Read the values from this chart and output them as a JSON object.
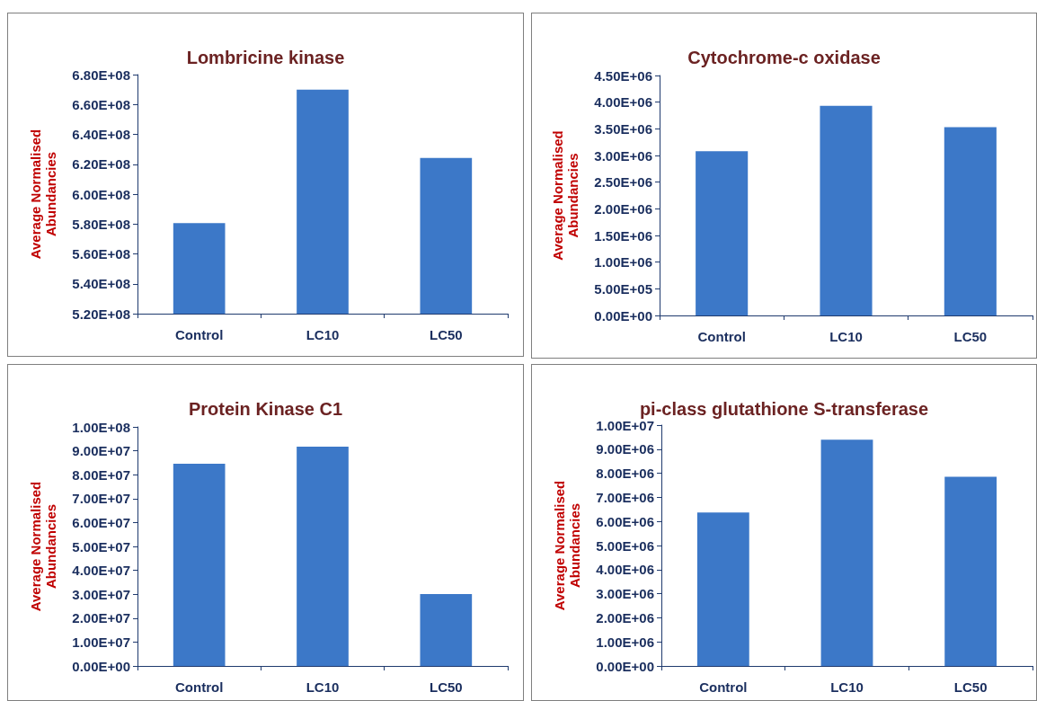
{
  "chart_data": [
    {
      "type": "bar",
      "title": "Lombricine kinase",
      "ylabel": "Average Normalised\nAbundancies",
      "categories": [
        "Control",
        "LC10",
        "LC50"
      ],
      "values": [
        580600000,
        669900000,
        624200000
      ],
      "color": "#3c78c8",
      "ylim": [
        520000000,
        680000000
      ],
      "yticks": [
        {
          "value": 520000000,
          "label": "5.20E+08"
        },
        {
          "value": 540000000,
          "label": "5.40E+08"
        },
        {
          "value": 560000000,
          "label": "5.60E+08"
        },
        {
          "value": 580000000,
          "label": "5.80E+08"
        },
        {
          "value": 600000000,
          "label": "6.00E+08"
        },
        {
          "value": 620000000,
          "label": "6.20E+08"
        },
        {
          "value": 640000000,
          "label": "6.40E+08"
        },
        {
          "value": 660000000,
          "label": "6.60E+08"
        },
        {
          "value": 680000000,
          "label": "6.80E+08"
        }
      ],
      "grid": false
    },
    {
      "type": "bar",
      "title": "Cytochrome-c oxidase",
      "ylabel": "Average Normalised\nAbundancies",
      "categories": [
        "Control",
        "LC10",
        "LC50"
      ],
      "values": [
        3080000,
        3930000,
        3530000
      ],
      "color": "#3c78c8",
      "ylim": [
        0,
        4500000
      ],
      "yticks": [
        {
          "value": 0,
          "label": "0.00E+00"
        },
        {
          "value": 500000,
          "label": "5.00E+05"
        },
        {
          "value": 1000000,
          "label": "1.00E+06"
        },
        {
          "value": 1500000,
          "label": "1.50E+06"
        },
        {
          "value": 2000000,
          "label": "2.00E+06"
        },
        {
          "value": 2500000,
          "label": "2.50E+06"
        },
        {
          "value": 3000000,
          "label": "3.00E+06"
        },
        {
          "value": 3500000,
          "label": "3.50E+06"
        },
        {
          "value": 4000000,
          "label": "4.00E+06"
        },
        {
          "value": 4500000,
          "label": "4.50E+06"
        }
      ],
      "grid": false
    },
    {
      "type": "bar",
      "title": "Protein Kinase C1",
      "ylabel": "Average Normalised\nAbundancies",
      "categories": [
        "Control",
        "LC10",
        "LC50"
      ],
      "values": [
        84600000,
        91700000,
        30100000
      ],
      "color": "#3c78c8",
      "ylim": [
        0,
        100000000
      ],
      "yticks": [
        {
          "value": 0,
          "label": "0.00E+00"
        },
        {
          "value": 10000000,
          "label": "1.00E+07"
        },
        {
          "value": 20000000,
          "label": "2.00E+07"
        },
        {
          "value": 30000000,
          "label": "3.00E+07"
        },
        {
          "value": 40000000,
          "label": "4.00E+07"
        },
        {
          "value": 50000000,
          "label": "5.00E+07"
        },
        {
          "value": 60000000,
          "label": "6.00E+07"
        },
        {
          "value": 70000000,
          "label": "7.00E+07"
        },
        {
          "value": 80000000,
          "label": "8.00E+07"
        },
        {
          "value": 90000000,
          "label": "9.00E+07"
        },
        {
          "value": 100000000,
          "label": "1.00E+08"
        }
      ],
      "grid": false
    },
    {
      "type": "bar",
      "title": "pi-class glutathione S-transferase",
      "ylabel": "Average Normalised\nAbundancies",
      "categories": [
        "Control",
        "LC10",
        "LC50"
      ],
      "values": [
        6370000,
        9390000,
        7850000
      ],
      "color": "#3c78c8",
      "ylim": [
        0,
        10000000
      ],
      "yticks": [
        {
          "value": 0,
          "label": "0.00E+00"
        },
        {
          "value": 1000000,
          "label": "1.00E+06"
        },
        {
          "value": 2000000,
          "label": "2.00E+06"
        },
        {
          "value": 3000000,
          "label": "3.00E+06"
        },
        {
          "value": 4000000,
          "label": "4.00E+06"
        },
        {
          "value": 5000000,
          "label": "5.00E+06"
        },
        {
          "value": 6000000,
          "label": "6.00E+06"
        },
        {
          "value": 7000000,
          "label": "7.00E+06"
        },
        {
          "value": 8000000,
          "label": "8.00E+06"
        },
        {
          "value": 9000000,
          "label": "9.00E+06"
        },
        {
          "value": 10000000,
          "label": "1.00E+07"
        }
      ],
      "grid": false
    }
  ]
}
